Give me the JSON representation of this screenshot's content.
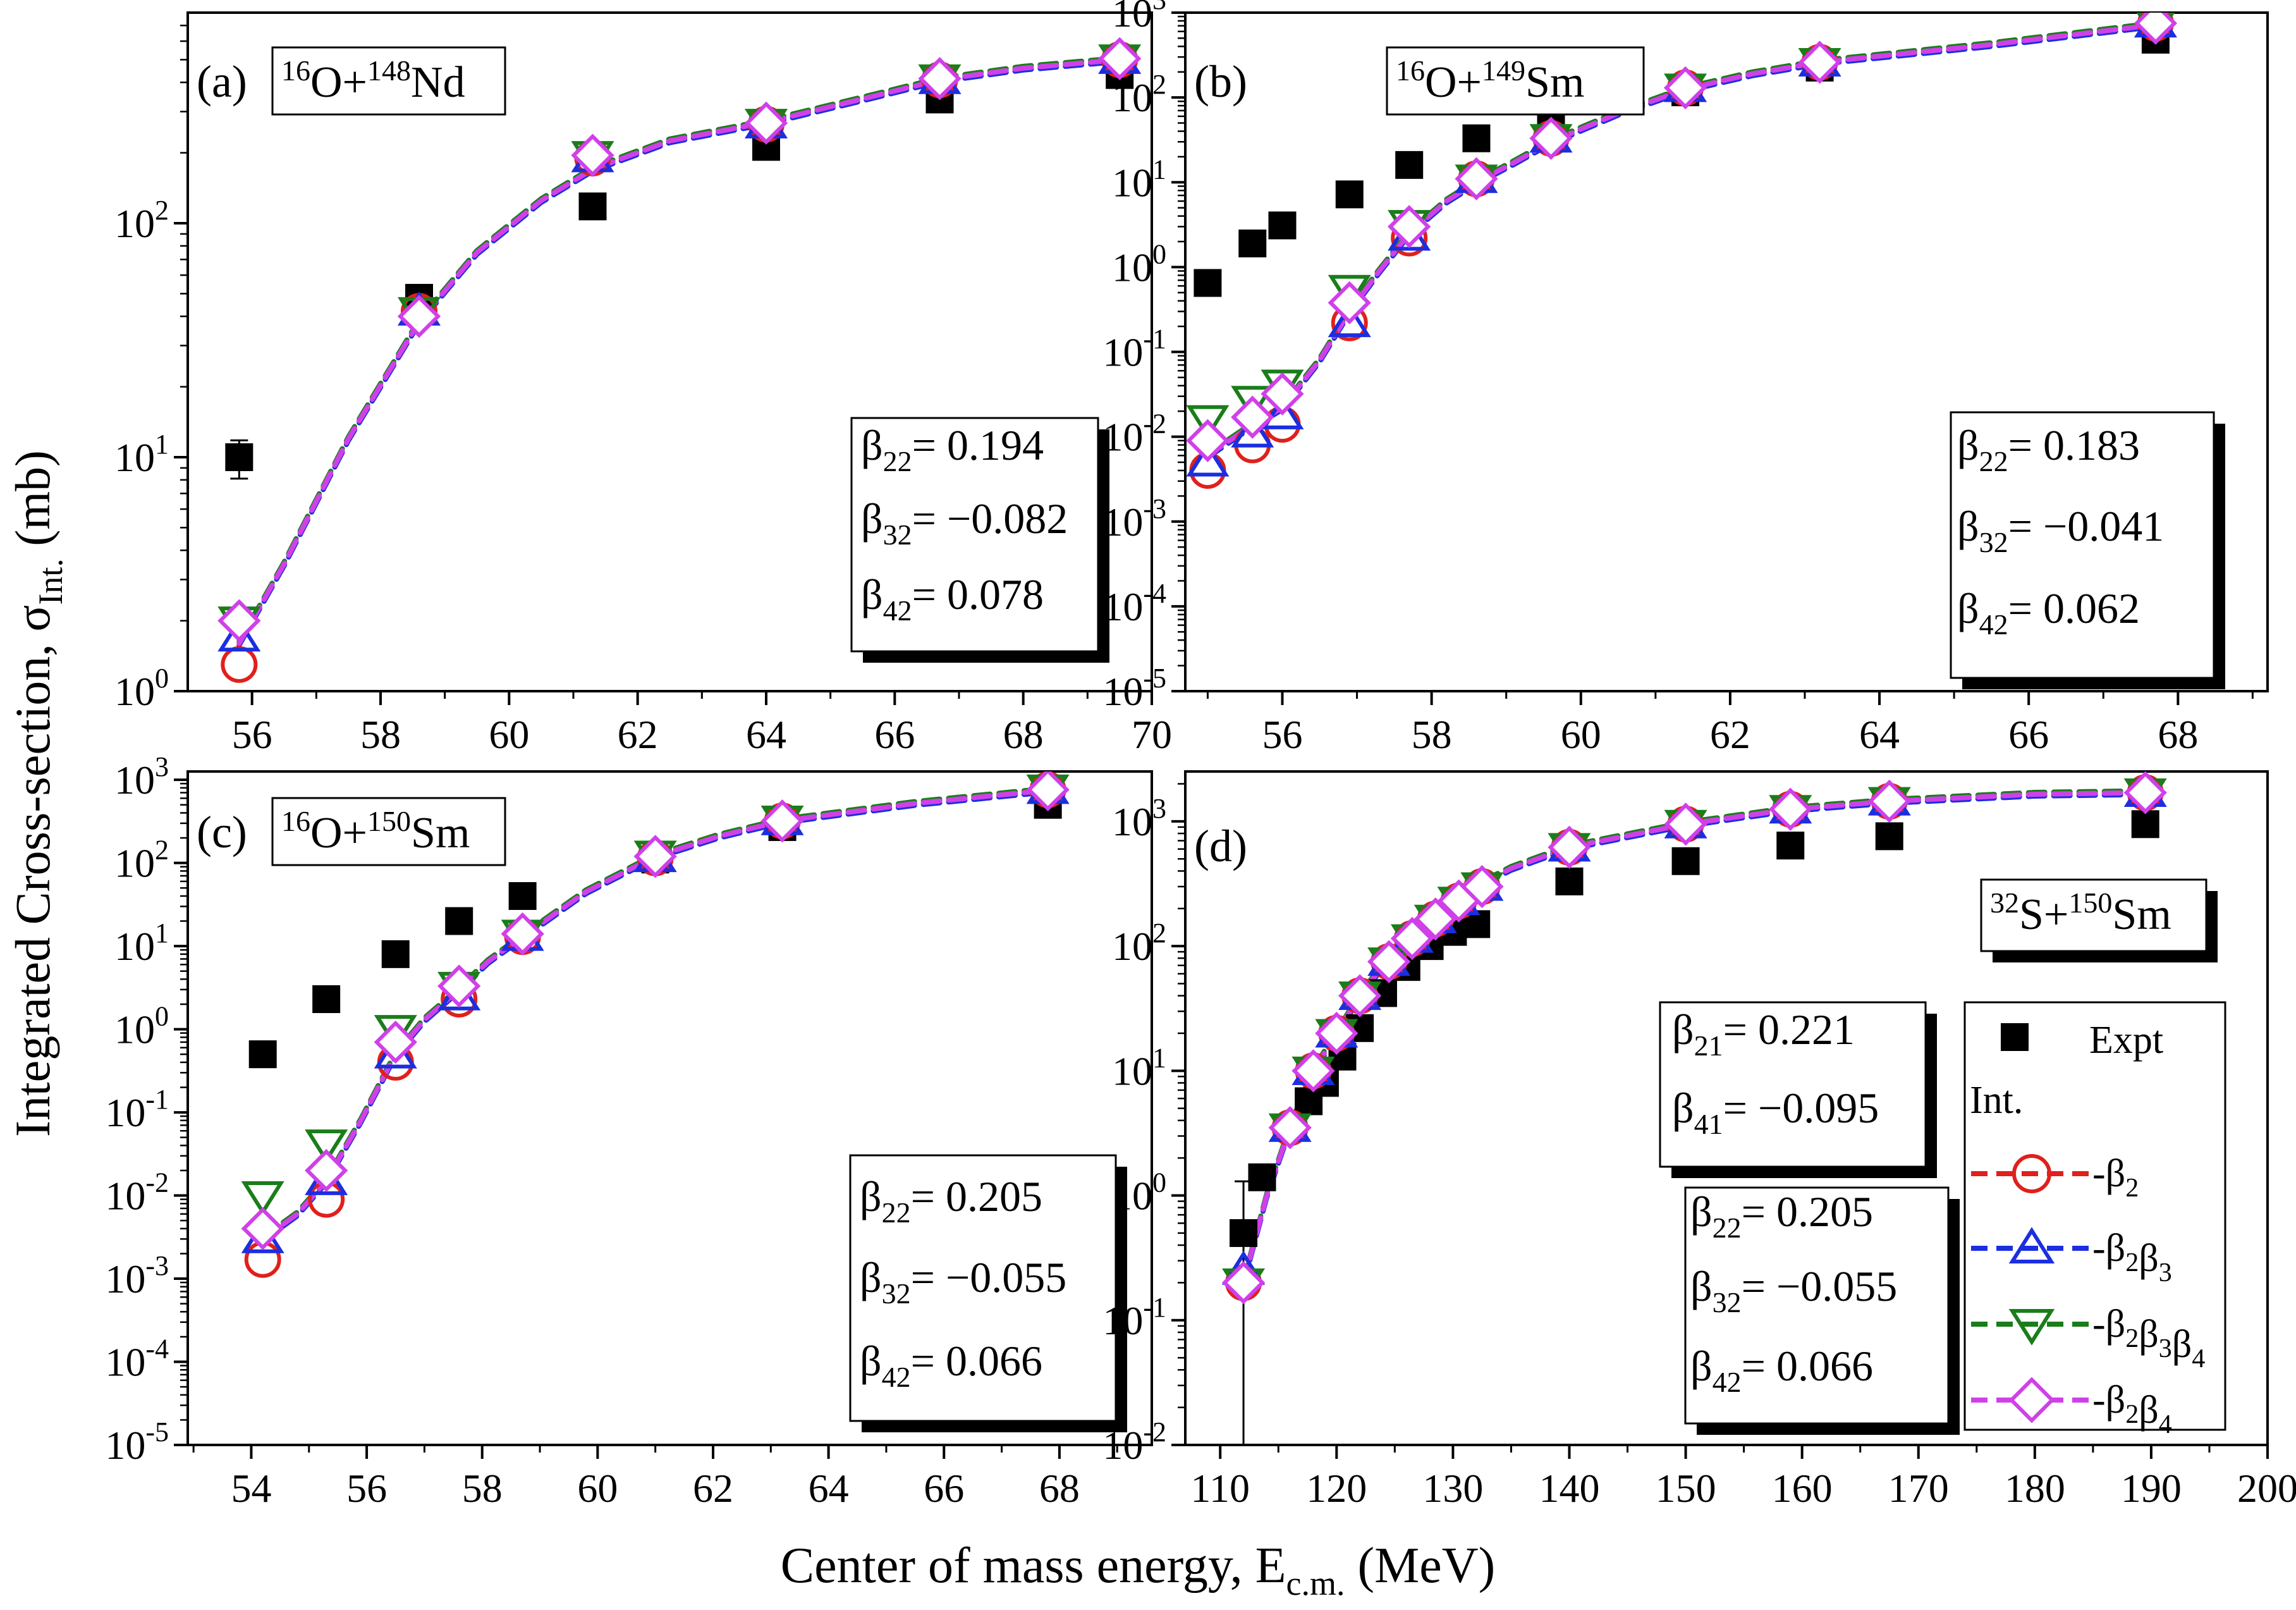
{
  "figure": {
    "ylabel": "Integrated Cross-section, σ",
    "ylabel_sub": "Int.",
    "ylabel_unit": " (mb)",
    "xlabel": "Center of mass energy, E",
    "xlabel_sub": "c.m.",
    "xlabel_unit": " (MeV)"
  },
  "legend": {
    "expt_label": "Expt",
    "int_label": "Int.",
    "entries": [
      {
        "key": "b2",
        "label": "β",
        "subs": [
          "2"
        ],
        "color": "#e0201c",
        "marker": "circle"
      },
      {
        "key": "b2b3",
        "label": "β",
        "subs": [
          "2",
          "3"
        ],
        "color": "#1c2ee0",
        "marker": "triangle-up"
      },
      {
        "key": "b2b3b4",
        "label": "β",
        "subs": [
          "2",
          "3",
          "4"
        ],
        "color": "#1a7d1a",
        "marker": "triangle-down"
      },
      {
        "key": "b2b4",
        "label": "β",
        "subs": [
          "2",
          "4"
        ],
        "color": "#d040e8",
        "marker": "diamond"
      }
    ]
  },
  "chart_data": [
    {
      "type": "scatter",
      "panel": "(a)",
      "reaction": {
        "proj_mass": "16",
        "proj": "O+",
        "targ_mass": "148",
        "targ": "Nd"
      },
      "xlim": [
        55,
        70
      ],
      "ylim_log10": [
        0,
        2.9
      ],
      "x_ticks": [
        56,
        58,
        60,
        62,
        64,
        66,
        68,
        70
      ],
      "y_ticks_exp": [
        0,
        1,
        2
      ],
      "params": [
        {
          "sub": "22",
          "text": "= 0.194"
        },
        {
          "sub": "32",
          "text": "= −0.082"
        },
        {
          "sub": "42",
          "text": "= 0.078"
        }
      ],
      "expt": {
        "x": [
          55.8,
          58.6,
          61.3,
          64.0,
          66.7,
          69.5
        ],
        "y": [
          10,
          48,
          118,
          212,
          338,
          430
        ],
        "yerr_low": [
          1.9,
          0,
          0,
          0,
          0,
          0
        ],
        "yerr_high": [
          1.8,
          0,
          0,
          0,
          0,
          0
        ]
      },
      "curve": {
        "x": [
          55.8,
          56.5,
          57.5,
          58.6,
          59.5,
          60.5,
          61.3,
          62.5,
          64.0,
          65.5,
          66.7,
          68.0,
          69.5
        ],
        "y": [
          1.6,
          3.5,
          12,
          38,
          75,
          125,
          170,
          225,
          270,
          340,
          410,
          460,
          500
        ]
      },
      "series": [
        {
          "name": "β2",
          "x": [
            55.8,
            58.6,
            61.3,
            64.0,
            66.7,
            69.5
          ],
          "y": [
            1.3,
            42,
            190,
            265,
            410,
            500
          ]
        },
        {
          "name": "β2β3",
          "x": [
            55.8,
            58.6,
            61.3,
            64.0,
            66.7,
            69.5
          ],
          "y": [
            1.7,
            42,
            190,
            265,
            410,
            500
          ]
        },
        {
          "name": "β2β3β4",
          "x": [
            55.8,
            58.6,
            61.3,
            64.0,
            66.7,
            69.5
          ],
          "y": [
            2.0,
            42,
            195,
            268,
            415,
            505
          ]
        },
        {
          "name": "β2β4",
          "x": [
            55.8,
            58.6,
            61.3,
            64.0,
            66.7,
            69.5
          ],
          "y": [
            2.0,
            40,
            195,
            268,
            415,
            505
          ]
        }
      ]
    },
    {
      "type": "scatter",
      "panel": "(b)",
      "reaction": {
        "proj_mass": "16",
        "proj": "O+",
        "targ_mass": "149",
        "targ": "Sm"
      },
      "xlim": [
        54.7,
        69.2
      ],
      "ylim_log10": [
        -5,
        3
      ],
      "x_ticks": [
        56,
        58,
        60,
        62,
        64,
        66,
        68
      ],
      "y_ticks_exp": [
        -5,
        -4,
        -3,
        -2,
        -1,
        0,
        1,
        2,
        3
      ],
      "params": [
        {
          "sub": "22",
          "text": "= 0.183"
        },
        {
          "sub": "32",
          "text": "= −0.041"
        },
        {
          "sub": "42",
          "text": "= 0.062"
        }
      ],
      "expt": {
        "x": [
          55.0,
          55.6,
          56.0,
          56.9,
          57.7,
          58.6,
          59.6,
          61.4,
          63.2,
          67.7
        ],
        "y": [
          0.65,
          1.9,
          3.1,
          7.2,
          16,
          33,
          58,
          115,
          225,
          480
        ]
      },
      "curve": {
        "x": [
          55.0,
          55.5,
          56.0,
          56.5,
          56.9,
          57.3,
          57.7,
          58.2,
          58.6,
          59.1,
          59.6,
          60.5,
          61.4,
          62.3,
          63.2,
          65.5,
          67.7
        ],
        "y": [
          0.006,
          0.012,
          0.022,
          0.08,
          0.3,
          0.9,
          2.5,
          6,
          10,
          17,
          30,
          65,
          125,
          190,
          260,
          420,
          720
        ]
      },
      "series": [
        {
          "name": "β2",
          "x": [
            55.0,
            55.6,
            56.0,
            56.9,
            57.7,
            58.6,
            59.6,
            61.4,
            63.2,
            67.7
          ],
          "y": [
            0.004,
            0.008,
            0.014,
            0.22,
            2.2,
            11,
            33,
            130,
            260,
            750
          ]
        },
        {
          "name": "β2β3",
          "x": [
            55.0,
            55.6,
            56.0,
            56.9,
            57.7,
            58.6,
            59.6,
            61.4,
            63.2,
            67.7
          ],
          "y": [
            0.005,
            0.011,
            0.018,
            0.22,
            2.3,
            11,
            33,
            130,
            260,
            750
          ]
        },
        {
          "name": "β2β3β4",
          "x": [
            55.0,
            55.6,
            56.0,
            56.9,
            57.7,
            58.6,
            59.6,
            61.4,
            63.2,
            67.7
          ],
          "y": [
            0.016,
            0.027,
            0.042,
            0.55,
            3.2,
            11,
            33,
            130,
            260,
            750
          ]
        },
        {
          "name": "β2β4",
          "x": [
            55.0,
            55.6,
            56.0,
            56.9,
            57.7,
            58.6,
            59.6,
            61.4,
            63.2,
            67.7
          ],
          "y": [
            0.009,
            0.017,
            0.032,
            0.38,
            3.0,
            11,
            33,
            130,
            260,
            750
          ]
        }
      ]
    },
    {
      "type": "scatter",
      "panel": "(c)",
      "reaction": {
        "proj_mass": "16",
        "proj": "O+",
        "targ_mass": "150",
        "targ": "Sm"
      },
      "xlim": [
        52.9,
        69.6
      ],
      "ylim_log10": [
        -5,
        3.1
      ],
      "x_ticks": [
        54,
        56,
        58,
        60,
        62,
        64,
        66,
        68
      ],
      "y_ticks_exp": [
        -5,
        -4,
        -3,
        -2,
        -1,
        0,
        1,
        2,
        3
      ],
      "params": [
        {
          "sub": "22",
          "text": "= 0.205"
        },
        {
          "sub": "32",
          "text": "= −0.055"
        },
        {
          "sub": "42",
          "text": "= 0.066"
        }
      ],
      "expt": {
        "x": [
          54.2,
          55.3,
          56.5,
          57.6,
          58.7,
          61.0,
          63.2,
          67.8
        ],
        "y": [
          0.5,
          2.3,
          8.0,
          20,
          40,
          110,
          270,
          500
        ]
      },
      "curve": {
        "x": [
          54.2,
          54.8,
          55.3,
          55.9,
          56.5,
          57.0,
          57.6,
          58.1,
          58.7,
          59.8,
          61.0,
          62.1,
          63.2,
          65.5,
          67.8
        ],
        "y": [
          0.003,
          0.006,
          0.015,
          0.08,
          0.5,
          1.3,
          3.0,
          6.5,
          13,
          45,
          120,
          210,
          320,
          520,
          750
        ]
      },
      "series": [
        {
          "name": "β2",
          "x": [
            54.2,
            55.3,
            56.5,
            57.6,
            58.7,
            61.0,
            63.2,
            67.8
          ],
          "y": [
            0.0017,
            0.009,
            0.4,
            2.3,
            13,
            115,
            320,
            760
          ]
        },
        {
          "name": "β2β3",
          "x": [
            54.2,
            55.3,
            56.5,
            57.6,
            58.7,
            61.0,
            63.2,
            67.8
          ],
          "y": [
            0.003,
            0.015,
            0.5,
            2.5,
            13,
            115,
            320,
            760
          ]
        },
        {
          "name": "β2β3β4",
          "x": [
            54.2,
            55.3,
            56.5,
            57.6,
            58.7,
            61.0,
            63.2,
            67.8
          ],
          "y": [
            0.01,
            0.042,
            1.0,
            3.3,
            14,
            125,
            330,
            780
          ]
        },
        {
          "name": "β2β4",
          "x": [
            54.2,
            55.3,
            56.5,
            57.6,
            58.7,
            61.0,
            63.2,
            67.8
          ],
          "y": [
            0.004,
            0.02,
            0.7,
            3.3,
            14,
            120,
            320,
            760
          ]
        }
      ]
    },
    {
      "type": "scatter",
      "panel": "(d)",
      "reaction": {
        "proj_mass": "32",
        "proj": "S+",
        "targ_mass": "150",
        "targ": "Sm"
      },
      "xlim": [
        107,
        200
      ],
      "ylim_log10": [
        -2,
        3.4
      ],
      "x_ticks": [
        110,
        120,
        130,
        140,
        150,
        160,
        170,
        180,
        190,
        200
      ],
      "y_ticks_exp": [
        -2,
        -1,
        0,
        1,
        2,
        3
      ],
      "params_a": [
        {
          "sub": "21",
          "text": "= 0.221"
        },
        {
          "sub": "41",
          "text": "= −0.095"
        }
      ],
      "params": [
        {
          "sub": "22",
          "text": "= 0.205"
        },
        {
          "sub": "32",
          "text": "= −0.055"
        },
        {
          "sub": "42",
          "text": "= 0.066"
        }
      ],
      "expt": {
        "x": [
          112.0,
          113.6,
          116.0,
          117.6,
          119.0,
          120.5,
          122.0,
          124.0,
          126.0,
          128.0,
          130.0,
          132.0,
          140.0,
          150.0,
          159.0,
          167.5,
          189.5
        ],
        "y": [
          0.5,
          1.4,
          3.5,
          5.7,
          8,
          13,
          22,
          42,
          68,
          100,
          130,
          150,
          330,
          480,
          640,
          760,
          950
        ],
        "yerr_low": [
          0.49,
          0,
          0,
          0,
          0,
          0,
          0,
          0,
          0,
          0,
          0,
          0,
          0,
          0,
          0,
          0,
          0
        ],
        "yerr_high": [
          0.8,
          0,
          0,
          0,
          0,
          0,
          0,
          0,
          0,
          0,
          0,
          0,
          0,
          0,
          0,
          0,
          0
        ]
      },
      "curve": {
        "x": [
          112.0,
          113.0,
          114.0,
          116.0,
          118.0,
          120.0,
          122.0,
          124.0,
          126.0,
          128.0,
          130.0,
          132.0,
          135.0,
          140.0,
          150.0,
          159.0,
          167.5,
          180.0,
          189.5
        ],
        "y": [
          0.2,
          0.45,
          1.0,
          3.5,
          10,
          20,
          40,
          70,
          110,
          170,
          230,
          300,
          420,
          620,
          950,
          1250,
          1450,
          1650,
          1700
        ]
      },
      "series": [
        {
          "name": "β2",
          "x": [
            112.0,
            116.0,
            118.0,
            120.0,
            122.0,
            124.5,
            126.5,
            128.5,
            130.5,
            132.5,
            140.0,
            150.0,
            159.0,
            167.5,
            189.5
          ],
          "y": [
            0.2,
            3.5,
            10,
            20,
            40,
            75,
            115,
            165,
            230,
            300,
            620,
            950,
            1250,
            1450,
            1700
          ]
        },
        {
          "name": "β2β3",
          "x": [
            112.0,
            116.0,
            118.0,
            120.0,
            122.0,
            124.5,
            126.5,
            128.5,
            130.5,
            132.5,
            140.0,
            150.0,
            159.0,
            167.5,
            189.5
          ],
          "y": [
            0.25,
            3.5,
            10,
            20,
            40,
            75,
            115,
            165,
            230,
            300,
            620,
            950,
            1250,
            1450,
            1700
          ]
        },
        {
          "name": "β2β3β4",
          "x": [
            112.0,
            116.0,
            118.0,
            120.0,
            122.0,
            124.5,
            126.5,
            128.5,
            130.5,
            132.5,
            140.0,
            150.0,
            159.0,
            167.5,
            189.5
          ],
          "y": [
            0.2,
            3.5,
            10,
            20,
            40,
            75,
            115,
            165,
            230,
            300,
            620,
            950,
            1250,
            1450,
            1700
          ]
        },
        {
          "name": "β2β4",
          "x": [
            112.0,
            116.0,
            118.0,
            120.0,
            122.0,
            124.5,
            126.5,
            128.5,
            130.5,
            132.5,
            140.0,
            150.0,
            159.0,
            167.5,
            189.5
          ],
          "y": [
            0.2,
            3.5,
            10,
            20,
            40,
            75,
            115,
            165,
            230,
            300,
            620,
            950,
            1250,
            1450,
            1700
          ]
        }
      ]
    }
  ]
}
